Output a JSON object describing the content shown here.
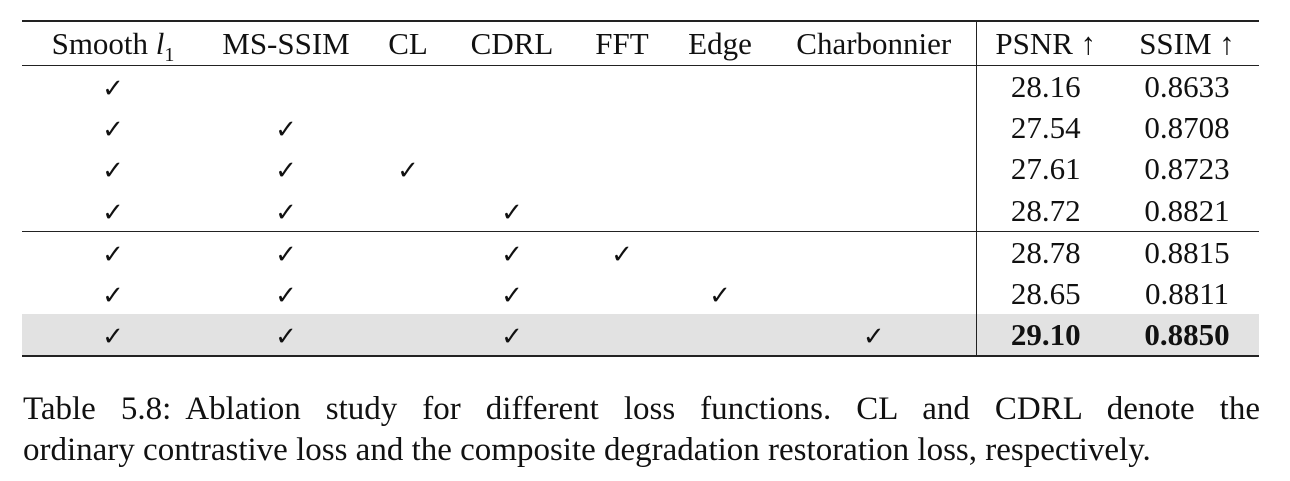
{
  "table": {
    "columns": [
      {
        "label": "Smooth ",
        "italic": "l",
        "sub": "1"
      },
      {
        "label": "MS-SSIM"
      },
      {
        "label": "CL"
      },
      {
        "label": "CDRL"
      },
      {
        "label": "FFT"
      },
      {
        "label": "Edge"
      },
      {
        "label": "Charbonnier"
      },
      {
        "label": "PSNR ↑"
      },
      {
        "label": "SSIM ↑"
      }
    ],
    "check_symbol": "✓",
    "rows": [
      {
        "checks": [
          true,
          false,
          false,
          false,
          false,
          false,
          false
        ],
        "psnr": "28.16",
        "ssim": "0.8633"
      },
      {
        "checks": [
          true,
          true,
          false,
          false,
          false,
          false,
          false
        ],
        "psnr": "27.54",
        "ssim": "0.8708"
      },
      {
        "checks": [
          true,
          true,
          true,
          false,
          false,
          false,
          false
        ],
        "psnr": "27.61",
        "ssim": "0.8723"
      },
      {
        "checks": [
          true,
          true,
          false,
          true,
          false,
          false,
          false
        ],
        "psnr": "28.72",
        "ssim": "0.8821"
      },
      {
        "checks": [
          true,
          true,
          false,
          true,
          true,
          false,
          false
        ],
        "psnr": "28.78",
        "ssim": "0.8815"
      },
      {
        "checks": [
          true,
          true,
          false,
          true,
          false,
          true,
          false
        ],
        "psnr": "28.65",
        "ssim": "0.8811"
      },
      {
        "checks": [
          true,
          true,
          false,
          true,
          false,
          false,
          true
        ],
        "psnr": "29.10",
        "ssim": "0.8850"
      }
    ],
    "highlight_color": "#e2e2e2"
  },
  "caption": {
    "tag": "Table 5.8:",
    "line1": "Ablation study for different loss functions.  CL and CDRL denote the",
    "line2": "ordinary contrastive loss and the composite degradation restoration loss, respectively."
  }
}
